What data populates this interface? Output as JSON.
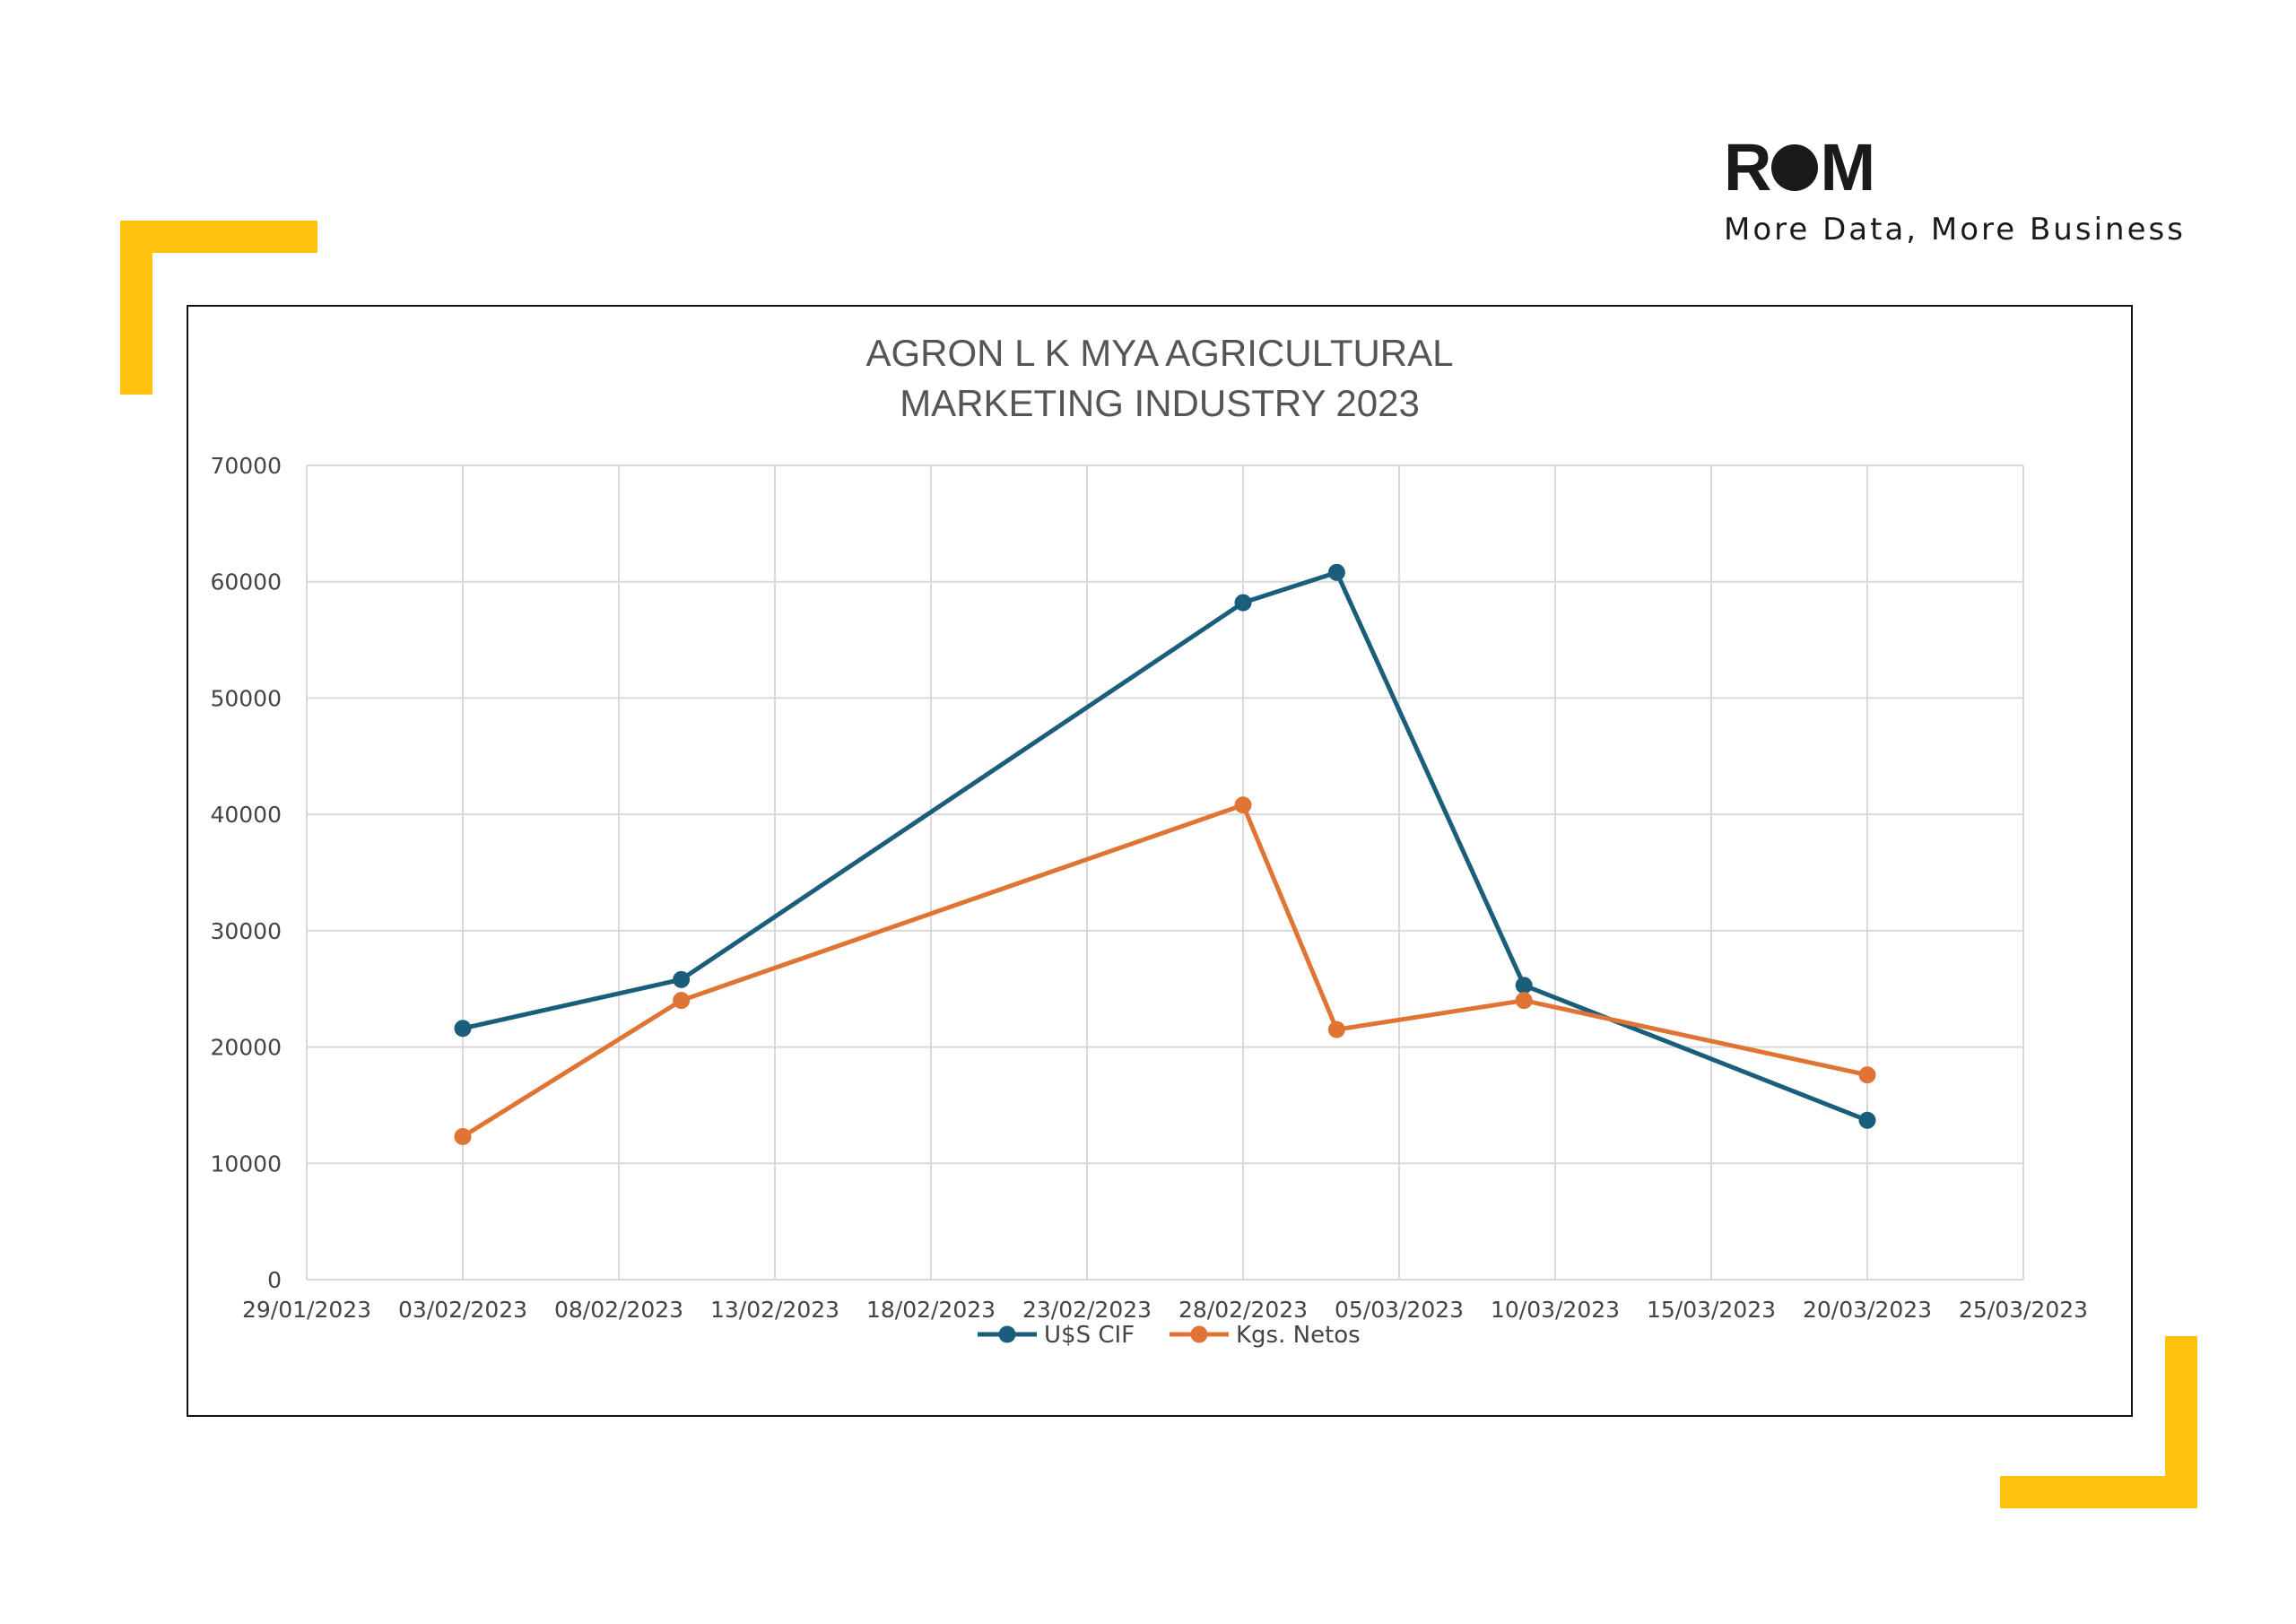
{
  "brand": {
    "logo_left": "R",
    "logo_right": "M",
    "tagline": "More Data, More Business"
  },
  "colors": {
    "accent": "#fec20f",
    "series_1": "#1b5e7b",
    "series_2": "#e07434",
    "grid": "#d9d9d9"
  },
  "chart_data": {
    "type": "line",
    "title": [
      "AGRON L K MYA AGRICULTURAL",
      "MARKETING INDUSTRY 2023"
    ],
    "xlabel": "",
    "ylabel": "",
    "x_ticks": [
      "29/01/2023",
      "03/02/2023",
      "08/02/2023",
      "13/02/2023",
      "18/02/2023",
      "23/02/2023",
      "28/02/2023",
      "05/03/2023",
      "10/03/2023",
      "15/03/2023",
      "20/03/2023",
      "25/03/2023"
    ],
    "xlim": [
      "29/01/2023",
      "25/03/2023"
    ],
    "ylim": [
      0,
      70000
    ],
    "y_ticks": [
      0,
      10000,
      20000,
      30000,
      40000,
      50000,
      60000,
      70000
    ],
    "grid": true,
    "legend_position": "bottom",
    "series": [
      {
        "name": "U$S CIF",
        "points": [
          {
            "x": "03/02/2023",
            "y": 21600
          },
          {
            "x": "10/02/2023",
            "y": 25800
          },
          {
            "x": "28/02/2023",
            "y": 58200
          },
          {
            "x": "03/03/2023",
            "y": 60800
          },
          {
            "x": "09/03/2023",
            "y": 25300
          },
          {
            "x": "20/03/2023",
            "y": 13700
          }
        ]
      },
      {
        "name": "Kgs. Netos",
        "points": [
          {
            "x": "03/02/2023",
            "y": 12300
          },
          {
            "x": "10/02/2023",
            "y": 24000
          },
          {
            "x": "28/02/2023",
            "y": 40800
          },
          {
            "x": "03/03/2023",
            "y": 21500
          },
          {
            "x": "09/03/2023",
            "y": 24000
          },
          {
            "x": "20/03/2023",
            "y": 17600
          }
        ]
      }
    ]
  }
}
